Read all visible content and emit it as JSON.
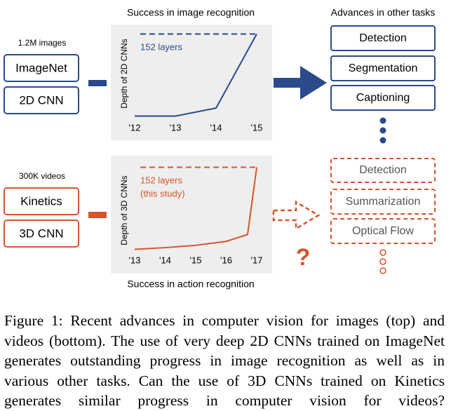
{
  "chart_data": [
    {
      "type": "line",
      "title": "Success in image recognition",
      "y_label": "Depth of 2D CNNs",
      "x": [
        2012,
        2013,
        2014,
        2015
      ],
      "values": [
        8,
        8,
        22,
        152
      ],
      "color": "#2b4a8b",
      "xlim": [
        2012,
        2015
      ],
      "xticks": [
        {
          "value": 2012,
          "label": "'12"
        },
        {
          "value": 2013,
          "label": "'13"
        },
        {
          "value": 2014,
          "label": "'14"
        },
        {
          "value": 2015,
          "label": "'15"
        }
      ],
      "ylim": [
        0,
        160
      ],
      "reference": 152,
      "annotation": [
        "152 layers"
      ]
    },
    {
      "type": "line",
      "title": "Success in action recognition",
      "y_label": "Depth of 3D CNNs",
      "x": [
        2013,
        2014,
        2015,
        2016,
        2016.7,
        2017
      ],
      "values": [
        8,
        11,
        15,
        22,
        34,
        152
      ],
      "color": "#d4552b",
      "xlim": [
        2013,
        2017
      ],
      "xticks": [
        {
          "value": 2013,
          "label": "'13"
        },
        {
          "value": 2014,
          "label": "'14"
        },
        {
          "value": 2015,
          "label": "'15"
        },
        {
          "value": 2016,
          "label": "'16"
        },
        {
          "value": 2017,
          "label": "'17"
        }
      ],
      "ylim": [
        0,
        160
      ],
      "reference": 152,
      "annotation": [
        "152 layers",
        "(this study)"
      ]
    }
  ],
  "diagram": {
    "top": {
      "input_label": "1.2M images",
      "boxes": [
        "ImageNet",
        "2D CNN"
      ],
      "tasks_title": "Advances in other tasks",
      "tasks": [
        "Detection",
        "Segmentation",
        "Captioning"
      ]
    },
    "bottom": {
      "input_label": "300K videos",
      "boxes": [
        "Kinetics",
        "3D CNN"
      ],
      "tasks": [
        "Detection",
        "Summarization",
        "Optical Flow"
      ],
      "question": "?"
    }
  },
  "caption": "Figure 1: Recent advances in computer vision for images (top) and videos (bottom). The use of very deep 2D CNNs trained on ImageNet generates outstanding progress in image recognition as well as in various other tasks. Can the use of 3D CNNs trained on Kinetics generates similar progress in computer vision for videos?"
}
